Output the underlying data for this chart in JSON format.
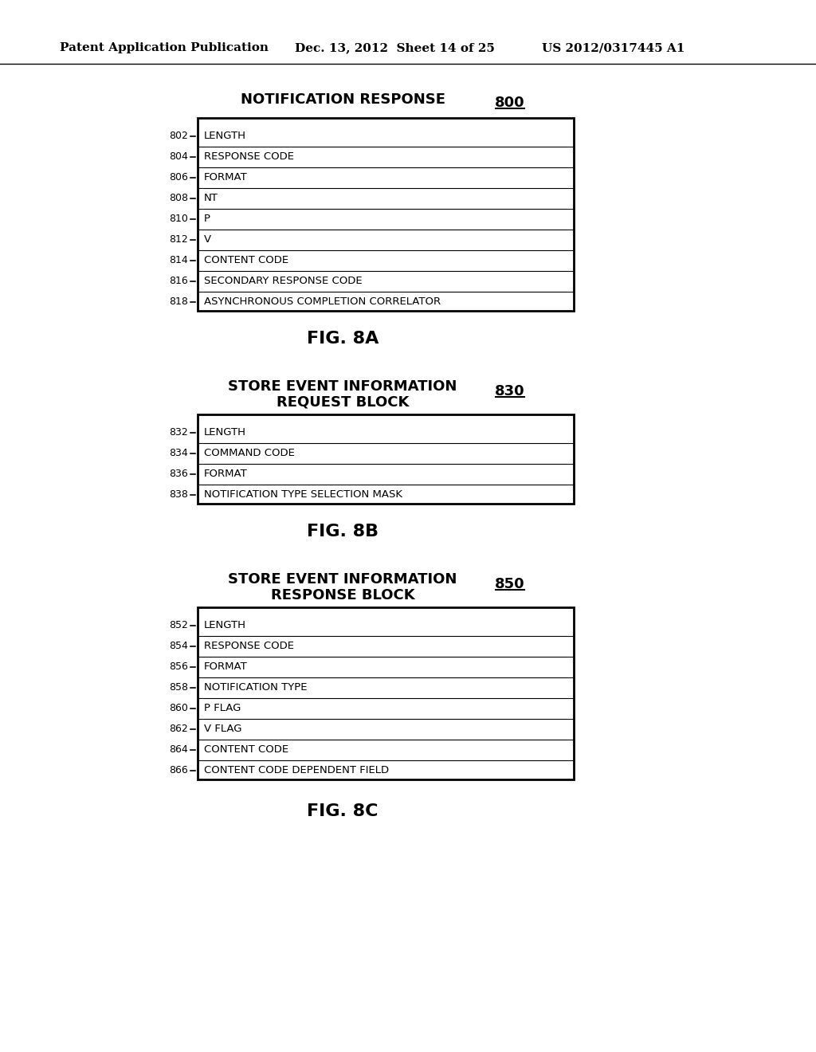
{
  "background_color": "#ffffff",
  "header_text": "Patent Application Publication",
  "header_date": "Dec. 13, 2012  Sheet 14 of 25",
  "header_patent": "US 2012/0317445 A1",
  "fig8a": {
    "title_line1": "NOTIFICATION RESPONSE",
    "ref_num": "800",
    "rows": [
      {
        "label": "802",
        "text": "LENGTH"
      },
      {
        "label": "804",
        "text": "RESPONSE CODE"
      },
      {
        "label": "806",
        "text": "FORMAT"
      },
      {
        "label": "808",
        "text": "NT"
      },
      {
        "label": "810",
        "text": "P"
      },
      {
        "label": "812",
        "text": "V"
      },
      {
        "label": "814",
        "text": "CONTENT CODE"
      },
      {
        "label": "816",
        "text": "SECONDARY RESPONSE CODE"
      },
      {
        "label": "818",
        "text": "ASYNCHRONOUS COMPLETION CORRELATOR"
      }
    ],
    "caption": "FIG. 8A"
  },
  "fig8b": {
    "title_line1": "STORE EVENT INFORMATION",
    "title_line2": "REQUEST BLOCK",
    "ref_num": "830",
    "rows": [
      {
        "label": "832",
        "text": "LENGTH"
      },
      {
        "label": "834",
        "text": "COMMAND CODE"
      },
      {
        "label": "836",
        "text": "FORMAT"
      },
      {
        "label": "838",
        "text": "NOTIFICATION TYPE SELECTION MASK"
      }
    ],
    "caption": "FIG. 8B"
  },
  "fig8c": {
    "title_line1": "STORE EVENT INFORMATION",
    "title_line2": "RESPONSE BLOCK",
    "ref_num": "850",
    "rows": [
      {
        "label": "852",
        "text": "LENGTH"
      },
      {
        "label": "854",
        "text": "RESPONSE CODE"
      },
      {
        "label": "856",
        "text": "FORMAT"
      },
      {
        "label": "858",
        "text": "NOTIFICATION TYPE"
      },
      {
        "label": "860",
        "text": "P FLAG"
      },
      {
        "label": "862",
        "text": "V FLAG"
      },
      {
        "label": "864",
        "text": "CONTENT CODE"
      },
      {
        "label": "866",
        "text": "CONTENT CODE DEPENDENT FIELD"
      }
    ],
    "caption": "FIG. 8C"
  }
}
